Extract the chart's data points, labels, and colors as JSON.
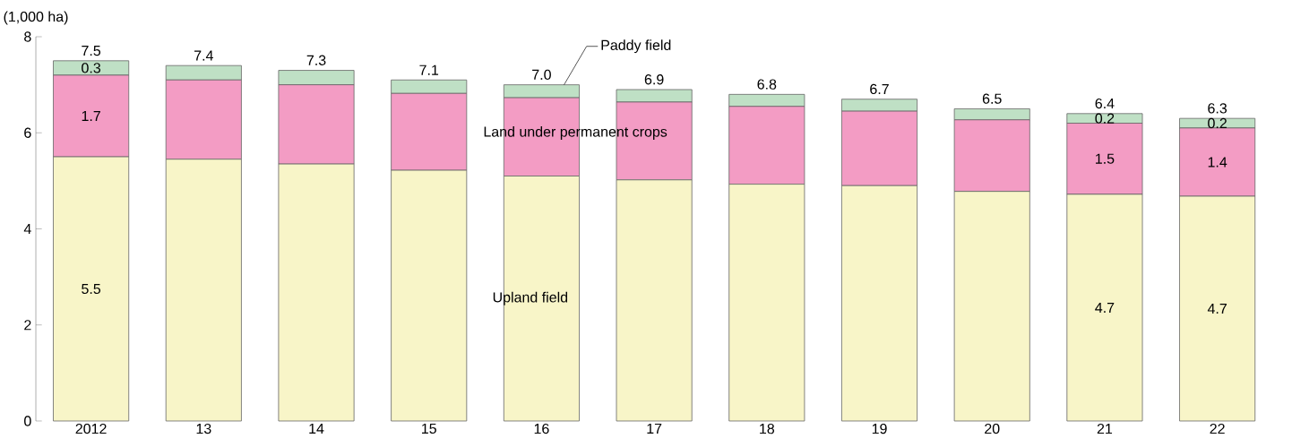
{
  "chart_data": {
    "type": "bar",
    "stacked": true,
    "ylabel": "(1,000 ha)",
    "categories": [
      "2012",
      "13",
      "14",
      "15",
      "16",
      "17",
      "18",
      "19",
      "20",
      "21",
      "22"
    ],
    "series": [
      {
        "name": "Upland field",
        "color": "#f8f5c8",
        "values": [
          5.5,
          5.45,
          5.35,
          5.22,
          5.1,
          5.02,
          4.93,
          4.9,
          4.78,
          4.72,
          4.68
        ],
        "value_labels": [
          "5.5",
          null,
          null,
          null,
          null,
          null,
          null,
          null,
          null,
          "4.7",
          "4.7"
        ]
      },
      {
        "name": "Land under permanent crops",
        "color": "#f39cc4",
        "values": [
          1.7,
          1.65,
          1.65,
          1.6,
          1.63,
          1.62,
          1.62,
          1.55,
          1.49,
          1.48,
          1.42
        ],
        "value_labels": [
          "1.7",
          null,
          null,
          null,
          null,
          null,
          null,
          null,
          null,
          "1.5",
          "1.4"
        ]
      },
      {
        "name": "Paddy field",
        "color": "#bfe0c5",
        "values": [
          0.3,
          0.3,
          0.3,
          0.28,
          0.27,
          0.26,
          0.25,
          0.25,
          0.23,
          0.2,
          0.2
        ],
        "value_labels": [
          "0.3",
          null,
          null,
          null,
          null,
          null,
          null,
          null,
          null,
          "0.2",
          "0.2"
        ]
      }
    ],
    "totals": [
      "7.5",
      "7.4",
      "7.3",
      "7.1",
      "7.0",
      "6.9",
      "6.8",
      "6.7",
      "6.5",
      "6.4",
      "6.3"
    ],
    "ylim": [
      0,
      8
    ],
    "yticks": [
      0,
      2,
      4,
      6,
      8
    ]
  }
}
